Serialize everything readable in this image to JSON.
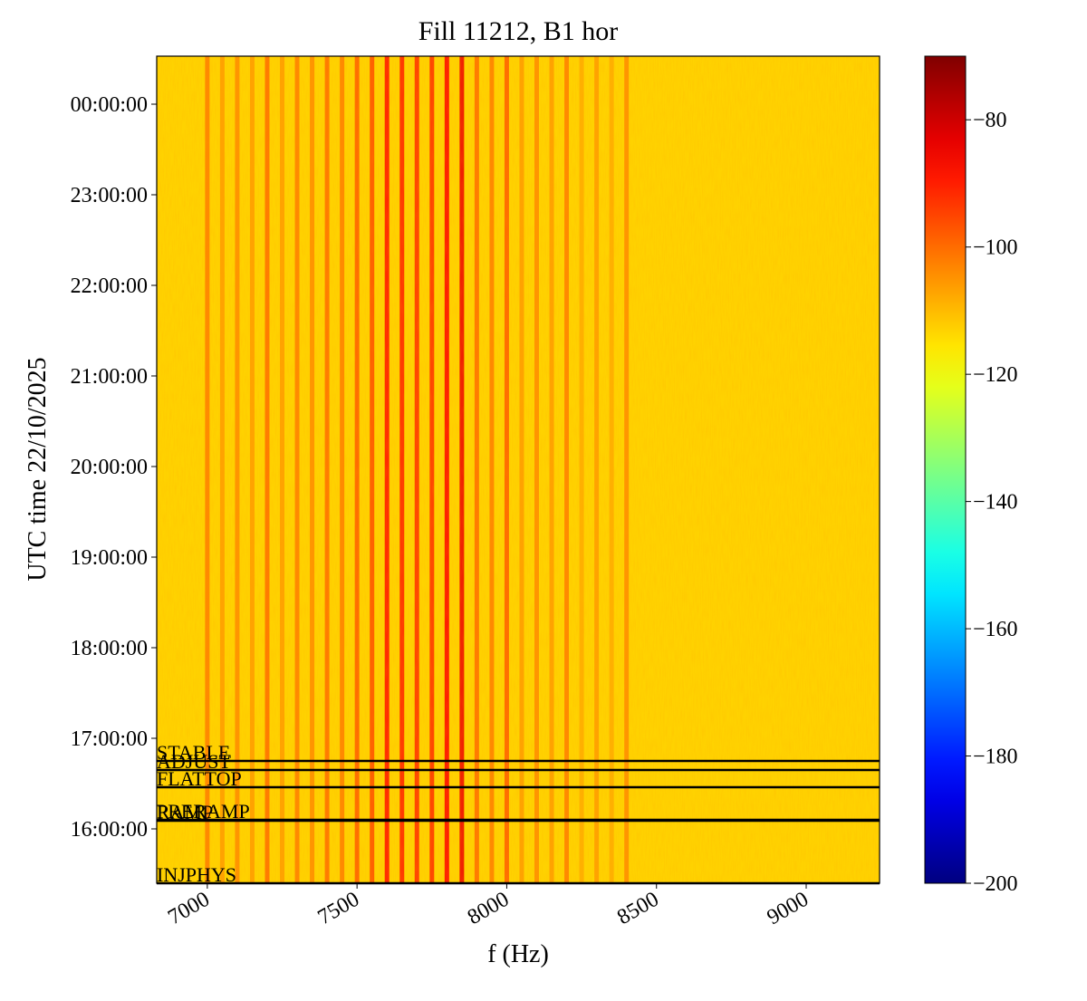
{
  "chart_data": {
    "type": "spectrogram",
    "title": "Fill 11212, B1 hor",
    "xlabel": "f (Hz)",
    "ylabel": "UTC time 22/10/2025",
    "xlim": [
      6831,
      9245
    ],
    "xticks": [
      7000,
      7500,
      8000,
      8500,
      9000
    ],
    "ylim": [
      15.4,
      24.53
    ],
    "yticks": [
      {
        "value": 16,
        "label": "16:00:00"
      },
      {
        "value": 17,
        "label": "17:00:00"
      },
      {
        "value": 18,
        "label": "18:00:00"
      },
      {
        "value": 19,
        "label": "19:00:00"
      },
      {
        "value": 20,
        "label": "20:00:00"
      },
      {
        "value": 21,
        "label": "21:00:00"
      },
      {
        "value": 22,
        "label": "22:00:00"
      },
      {
        "value": 23,
        "label": "23:00:00"
      },
      {
        "value": 24,
        "label": "00:00:00"
      }
    ],
    "clim": [
      -200,
      -70
    ],
    "cticks": [
      {
        "value": -80,
        "label": "−80"
      },
      {
        "value": -100,
        "label": "−100"
      },
      {
        "value": -120,
        "label": "−120"
      },
      {
        "value": -140,
        "label": "−140"
      },
      {
        "value": -160,
        "label": "−160"
      },
      {
        "value": -180,
        "label": "−180"
      },
      {
        "value": -200,
        "label": "−200"
      }
    ],
    "colormap": "jet",
    "background": -113,
    "lines": {
      "freqs": [
        7000,
        7050,
        7100,
        7150,
        7200,
        7250,
        7300,
        7350,
        7400,
        7450,
        7500,
        7550,
        7600,
        7650,
        7700,
        7750,
        7800,
        7850,
        7900,
        7950,
        8000,
        8050,
        8100,
        8150,
        8200,
        8250,
        8300,
        8350,
        8400
      ],
      "levels": [
        -102,
        -106,
        -104,
        -106,
        -100,
        -106,
        -102,
        -104,
        -100,
        -102,
        -98,
        -96,
        -88,
        -90,
        -92,
        -92,
        -86,
        -84,
        -100,
        -102,
        -98,
        -106,
        -104,
        -106,
        -102,
        -108,
        -106,
        -108,
        -104
      ]
    },
    "modes": [
      {
        "label": "STABLE",
        "time": 16.75
      },
      {
        "label": "ADJUST",
        "time": 16.65
      },
      {
        "label": "FLATTOP",
        "time": 16.46
      },
      {
        "label": "PRERAMP",
        "time": 16.1
      },
      {
        "label": "RAMP",
        "time": 16.09
      },
      {
        "label": "INJPHYS",
        "time": 15.4
      }
    ]
  }
}
